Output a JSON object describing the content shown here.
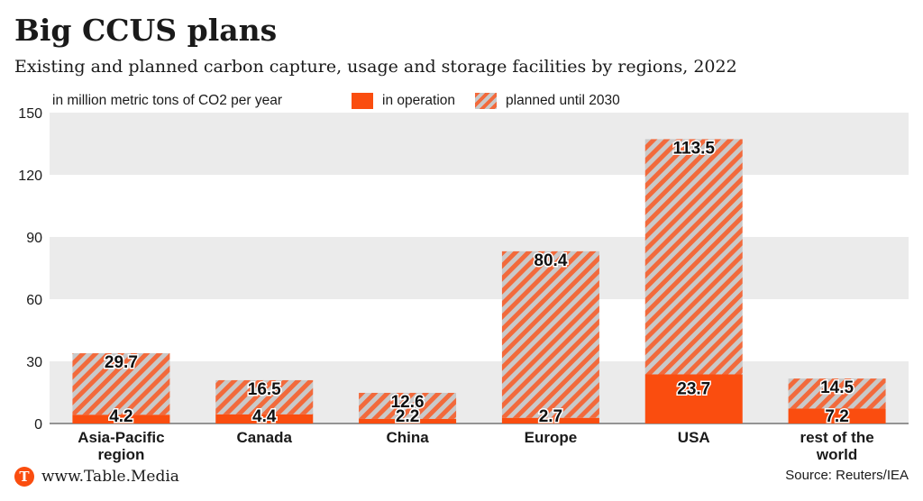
{
  "title": "Big CCUS plans",
  "subtitle": "Existing and planned carbon capture, usage and storage facilities by regions, 2022",
  "unit_label": "in million metric tons of CO2 per year",
  "legend": {
    "operation": "in operation",
    "planned": "planned until 2030"
  },
  "footer": {
    "logo_letter": "T",
    "site": "www.Table.Media",
    "source": "Source: Reuters/IEA"
  },
  "colors": {
    "operation": "#fa4d0f",
    "planned_stripe": "#f26a3c",
    "planned_gap": "#c9c9c9",
    "band": "#ebebeb"
  },
  "chart_data": {
    "type": "bar",
    "stacked": true,
    "categories": [
      [
        "Asia-Pacific",
        "region"
      ],
      [
        "Canada"
      ],
      [
        "China"
      ],
      [
        "Europe"
      ],
      [
        "USA"
      ],
      [
        "rest of the",
        "world"
      ]
    ],
    "series": [
      {
        "name": "in operation",
        "values": [
          4.2,
          4.4,
          2.2,
          2.7,
          23.7,
          7.2
        ]
      },
      {
        "name": "planned until 2030",
        "values": [
          29.7,
          16.5,
          12.6,
          80.4,
          113.5,
          14.5
        ]
      }
    ],
    "ylim": [
      0,
      150
    ],
    "yticks": [
      0,
      30,
      60,
      90,
      120,
      150
    ],
    "ylabel": "in million metric tons of CO2 per year",
    "legend_position": "top",
    "grid": "alternating horizontal bands"
  }
}
